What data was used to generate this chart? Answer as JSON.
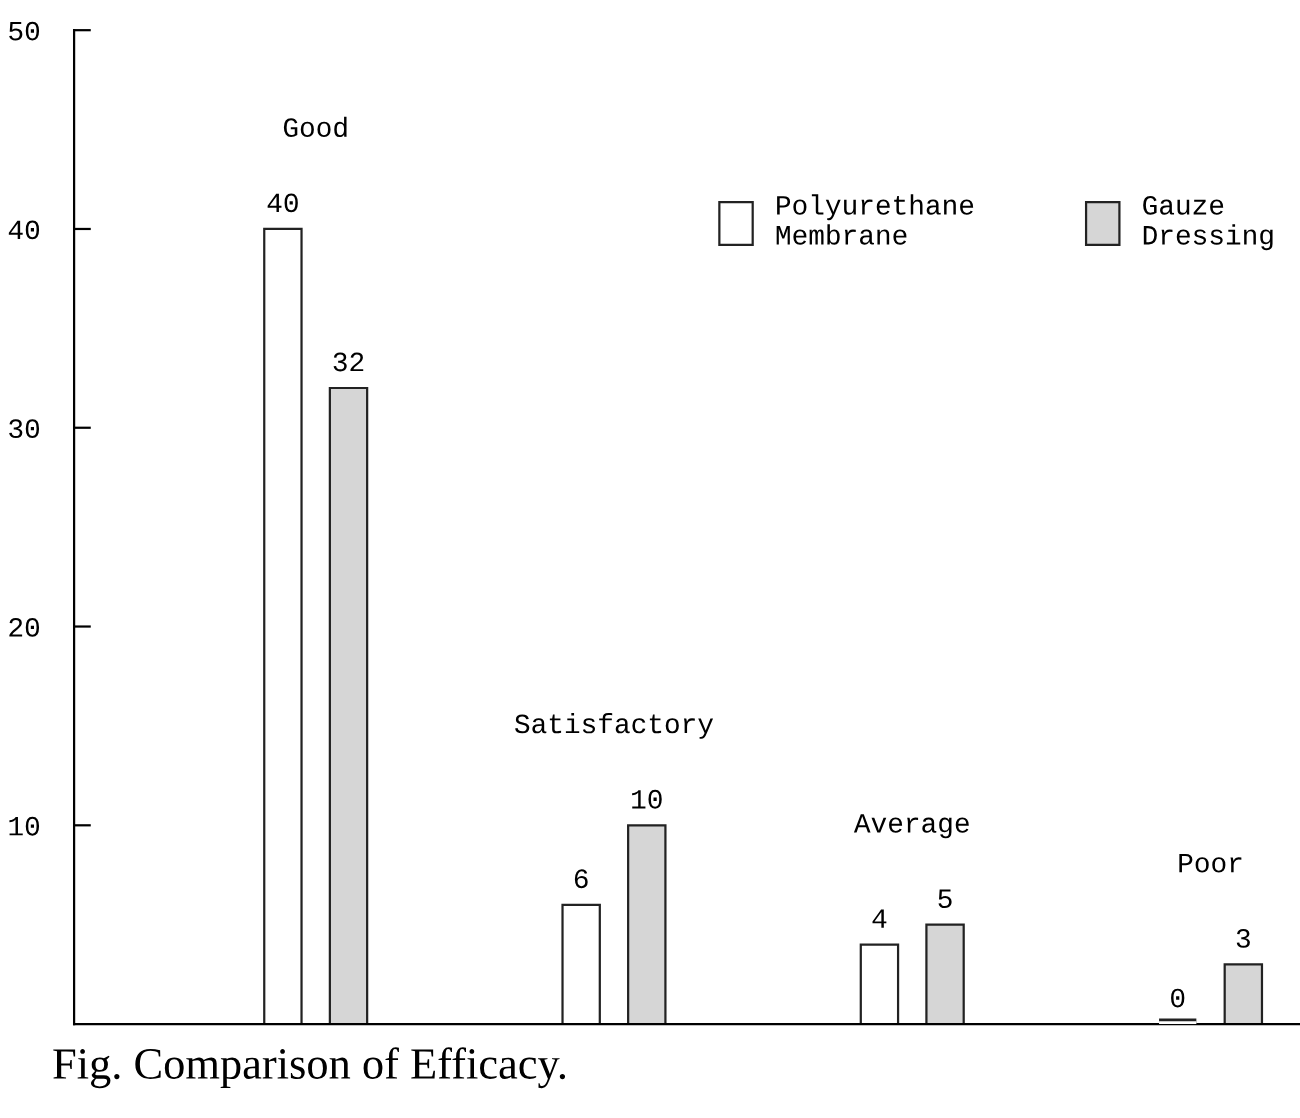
{
  "chart_data": {
    "type": "bar",
    "title": "Fig. Comparison of Efficacy.",
    "categories": [
      "Good",
      "Satisfactory",
      "Average",
      "Poor"
    ],
    "series": [
      {
        "name": "Polyurethane Membrane",
        "color": "#ffffff",
        "values": [
          40,
          6,
          4,
          0
        ]
      },
      {
        "name": "Gauze Dressing",
        "color": "#d6d6d6",
        "values": [
          32,
          10,
          5,
          3
        ]
      }
    ],
    "ylim": [
      0,
      50
    ],
    "yticks": [
      10,
      20,
      30,
      40,
      50
    ],
    "data_labels": true,
    "legend": "top right",
    "grid": false
  }
}
